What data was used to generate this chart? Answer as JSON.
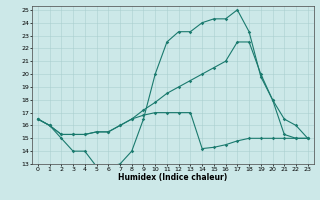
{
  "xlabel": "Humidex (Indice chaleur)",
  "bg_color": "#cce8e8",
  "line_color": "#1a7a6e",
  "grid_color": "#aacfcf",
  "ylim": [
    13,
    25
  ],
  "xlim": [
    -0.5,
    23.5
  ],
  "line1_y": [
    16.5,
    16.0,
    15.0,
    14.0,
    14.0,
    12.8,
    12.8,
    13.0,
    14.0,
    16.5,
    20.0,
    22.5,
    23.3,
    23.3,
    24.0,
    24.3,
    24.3,
    25.0,
    23.3,
    19.8,
    18.0,
    15.3,
    15.0,
    15.0
  ],
  "line2_y": [
    16.5,
    16.0,
    15.3,
    15.3,
    15.3,
    15.5,
    15.5,
    16.0,
    16.5,
    17.2,
    17.8,
    18.5,
    19.0,
    19.5,
    20.0,
    20.5,
    21.0,
    22.5,
    22.5,
    20.0,
    18.0,
    16.5,
    16.0,
    15.0
  ],
  "line3_y": [
    16.5,
    16.0,
    15.3,
    15.3,
    15.3,
    15.5,
    15.5,
    16.0,
    16.5,
    16.8,
    17.0,
    17.0,
    17.0,
    17.0,
    14.2,
    14.3,
    14.5,
    14.8,
    15.0,
    15.0,
    15.0,
    15.0,
    15.0,
    15.0
  ],
  "yticks": [
    13,
    14,
    15,
    16,
    17,
    18,
    19,
    20,
    21,
    22,
    23,
    24,
    25
  ],
  "xticks": [
    0,
    1,
    2,
    3,
    4,
    5,
    6,
    7,
    8,
    9,
    10,
    11,
    12,
    13,
    14,
    15,
    16,
    17,
    18,
    19,
    20,
    21,
    22,
    23
  ]
}
